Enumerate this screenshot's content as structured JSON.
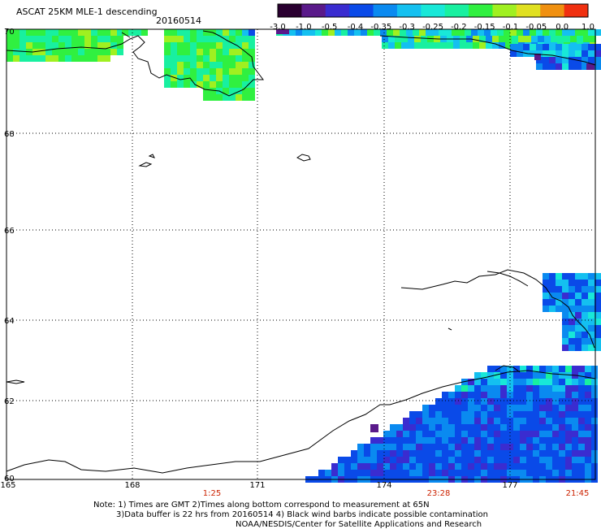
{
  "header": {
    "title": "ASCAT 25KM MLE-1 descending",
    "date": "20160514"
  },
  "colorbar": {
    "labels": [
      "-3.0",
      "-1.0",
      "-0.5",
      "-0.4",
      "-0.35",
      "-0.3",
      "-0.25",
      "-0.2",
      "-0.15",
      "-0.1",
      "-0.05",
      "0.0",
      "1.0"
    ],
    "colors": [
      "#2a0030",
      "#5a1a8a",
      "#3a2cd0",
      "#0a4ae8",
      "#0a8af0",
      "#14c0f0",
      "#18e8d8",
      "#18f0a0",
      "#30f040",
      "#a0f020",
      "#e0e020",
      "#f09010",
      "#f03010"
    ]
  },
  "axes": {
    "lat_labels": [
      "70",
      "68",
      "66",
      "64",
      "62",
      "60"
    ],
    "lon_labels": [
      "165",
      "168",
      "171",
      "174",
      "177"
    ],
    "time_labels": [
      "1:25",
      "23:28",
      "21:45"
    ]
  },
  "notes": {
    "line1": "Note: 1) Times are GMT 2)Times along bottom correspond to measurement at 65N",
    "line2": "3)Data buffer is 22 hrs from 20160514 4) Black wind barbs indicate possible contamination",
    "line3": "NOAA/NESDIS/Center for Satellite Applications and Research"
  },
  "colors": {
    "grid": "#000000",
    "time_label": "#cc2200"
  }
}
